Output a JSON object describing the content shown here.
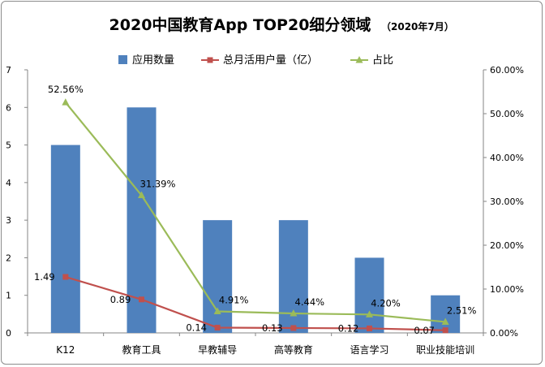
{
  "chart_data": {
    "type": "bar",
    "title": "2020中国教育App TOP20细分领域",
    "subtitle": "（2020年7月）",
    "categories": [
      "K12",
      "教育工具",
      "早教辅导",
      "高等教育",
      "语言学习",
      "职业技能培训"
    ],
    "series": [
      {
        "name": "应用数量",
        "type": "bar",
        "axis": "left",
        "color": "#4f81bd",
        "values": [
          5,
          6,
          3,
          3,
          2,
          1
        ]
      },
      {
        "name": "总月活用户量（亿）",
        "type": "line",
        "axis": "left",
        "color": "#c0504d",
        "marker": "square",
        "values": [
          1.49,
          0.89,
          0.14,
          0.13,
          0.12,
          0.07
        ],
        "labels": [
          "1.49",
          "0.89",
          "0.14",
          "0.13",
          "0.12",
          "0.07"
        ]
      },
      {
        "name": "占比",
        "type": "line",
        "axis": "right",
        "color": "#9bbb59",
        "marker": "triangle",
        "values": [
          52.56,
          31.39,
          4.91,
          4.44,
          4.2,
          2.51
        ],
        "labels": [
          "52.56%",
          "31.39%",
          "4.91%",
          "4.44%",
          "4.20%",
          "2.51%"
        ]
      }
    ],
    "ylim": [
      0,
      7
    ],
    "y_ticks": [
      "0",
      "1",
      "2",
      "3",
      "4",
      "5",
      "6",
      "7"
    ],
    "y2lim": [
      0,
      60
    ],
    "y2_ticks": [
      "0.00%",
      "10.00%",
      "20.00%",
      "30.00%",
      "40.00%",
      "50.00%",
      "60.00%"
    ],
    "legend_position": "top",
    "grid": false
  }
}
